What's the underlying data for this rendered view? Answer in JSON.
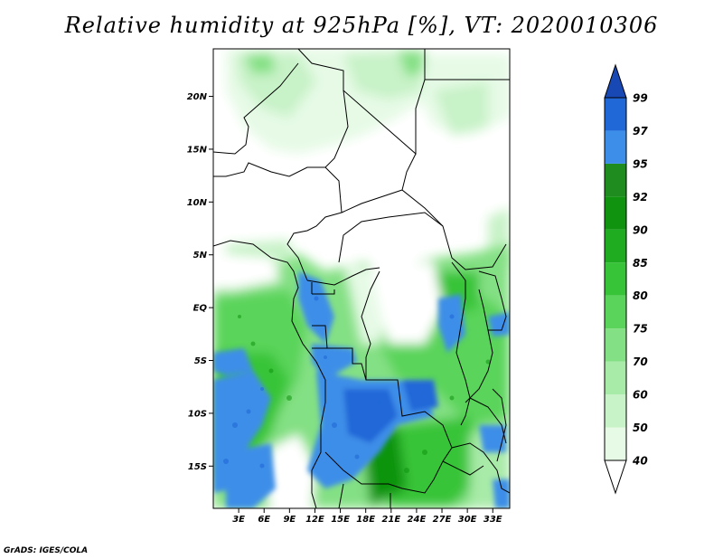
{
  "title": "Relative humidity at 925hPa [%], VT: 2020010306",
  "credit": "GrADS: IGES/COLA",
  "map": {
    "lat_range": [
      -19,
      24.5
    ],
    "lon_range": [
      0,
      35
    ],
    "lat_ticks": [
      {
        "value": 20,
        "label": "20N"
      },
      {
        "value": 15,
        "label": "15N"
      },
      {
        "value": 10,
        "label": "10N"
      },
      {
        "value": 5,
        "label": "5N"
      },
      {
        "value": 0,
        "label": "EQ"
      },
      {
        "value": -5,
        "label": "5S"
      },
      {
        "value": -10,
        "label": "10S"
      },
      {
        "value": -15,
        "label": "15S"
      }
    ],
    "lon_ticks": [
      {
        "value": 3,
        "label": "3E"
      },
      {
        "value": 6,
        "label": "6E"
      },
      {
        "value": 9,
        "label": "9E"
      },
      {
        "value": 12,
        "label": "12E"
      },
      {
        "value": 15,
        "label": "15E"
      },
      {
        "value": 18,
        "label": "18E"
      },
      {
        "value": 21,
        "label": "21E"
      },
      {
        "value": 24,
        "label": "24E"
      },
      {
        "value": 27,
        "label": "27E"
      },
      {
        "value": 30,
        "label": "30E"
      },
      {
        "value": 33,
        "label": "33E"
      }
    ]
  },
  "colorbar": {
    "levels": [
      "40",
      "50",
      "60",
      "70",
      "75",
      "80",
      "85",
      "90",
      "92",
      "95",
      "97",
      "99"
    ],
    "colors": [
      "#ffffff",
      "#e6fae6",
      "#c8f2c8",
      "#a8eaa8",
      "#84e084",
      "#5ad45a",
      "#38c438",
      "#20ac20",
      "#109410",
      "#1e8c1e",
      "#3c8ee8",
      "#2068d8",
      "#1848b4"
    ]
  }
}
